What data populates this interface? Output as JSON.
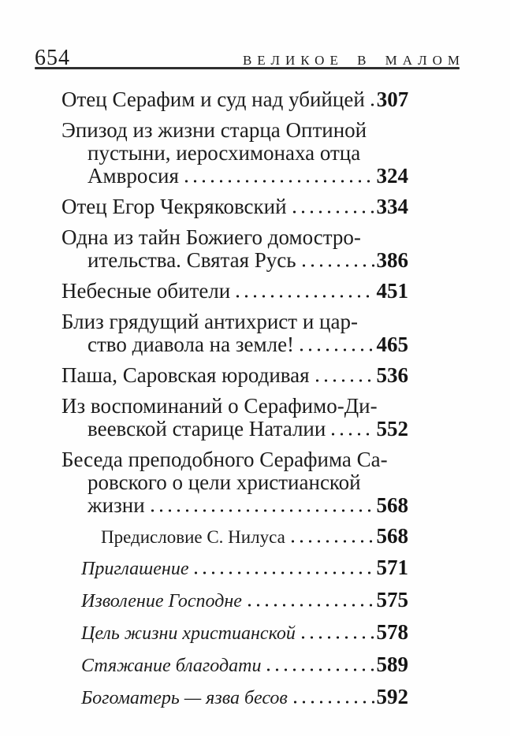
{
  "page": {
    "folio": "654",
    "running_title": "ВЕЛИКОЕ В МАЛОМ"
  },
  "toc": {
    "entries": [
      {
        "style": "main",
        "lines": [
          "Отец Серафим и суд над убийцей"
        ],
        "page": "307"
      },
      {
        "style": "main",
        "lines": [
          "Эпизод из жизни старца Оптиной",
          "пустыни, иеросхимонаха отца",
          "Амвросия"
        ],
        "page": "324"
      },
      {
        "style": "main",
        "lines": [
          "Отец Егор Чекряковский"
        ],
        "page": "334"
      },
      {
        "style": "main",
        "lines": [
          "Одна из тайн Божиего домостро-",
          "ительства. Святая Русь"
        ],
        "page": "386"
      },
      {
        "style": "main",
        "lines": [
          "Небесные обители"
        ],
        "page": "451"
      },
      {
        "style": "main",
        "lines": [
          "Близ грядущий антихрист и цар-",
          "ство диавола на земле!"
        ],
        "page": "465"
      },
      {
        "style": "main",
        "lines": [
          "Паша, Саровская юродивая"
        ],
        "page": "536"
      },
      {
        "style": "main",
        "lines": [
          "Из воспоминаний о Серафимо-Ди-",
          "веевской старице Наталии"
        ],
        "page": "552"
      },
      {
        "style": "main",
        "lines": [
          "Беседа преподобного Серафима Са-",
          "ровского о цели христианской",
          "жизни"
        ],
        "page": "568"
      },
      {
        "style": "sub",
        "lines": [
          "Предисловие С. Нилуса"
        ],
        "page": "568"
      },
      {
        "style": "sub-italic",
        "lines": [
          "Приглашение"
        ],
        "page": "571"
      },
      {
        "style": "sub-italic",
        "lines": [
          "Изволение Господне"
        ],
        "page": "575"
      },
      {
        "style": "sub-italic",
        "lines": [
          "Цель жизни христианской"
        ],
        "page": "578"
      },
      {
        "style": "sub-italic",
        "lines": [
          "Стяжание благодати"
        ],
        "page": "589"
      },
      {
        "style": "sub-italic",
        "lines": [
          "Богоматерь — язва бесов"
        ],
        "page": "592"
      }
    ]
  },
  "colors": {
    "ink": "#1d1d1d",
    "paper": "#fefefe",
    "rule": "#2f2f2f"
  }
}
